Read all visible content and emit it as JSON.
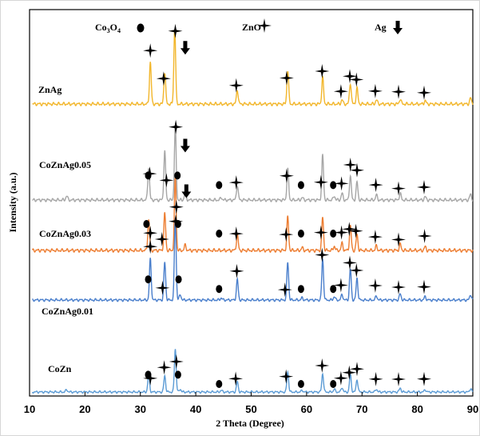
{
  "chart_data": {
    "type": "line",
    "xlabel": "2 Theta (Degree)",
    "ylabel": "Intensity (a.u.)",
    "xlim": [
      10,
      90
    ],
    "x_ticks": [
      "10",
      "20",
      "30",
      "40",
      "50",
      "60",
      "70",
      "80",
      "90"
    ],
    "legend": [
      {
        "label": "Co3O4",
        "label_main": "Co",
        "label_sub1": "3",
        "label_mid": "O",
        "label_sub2": "4",
        "marker": "circle"
      },
      {
        "label": "ZnO",
        "marker": "star"
      },
      {
        "label": "Ag",
        "marker": "down-arrow"
      }
    ],
    "series": [
      {
        "name": "ZnAg",
        "color": "#f2b62b",
        "peaks": [
          [
            31.8,
            0.5
          ],
          [
            34.4,
            0.38
          ],
          [
            36.2,
            0.9
          ],
          [
            47.5,
            0.17
          ],
          [
            56.6,
            0.4
          ],
          [
            62.9,
            0.32
          ],
          [
            66.4,
            0.05
          ],
          [
            67.9,
            0.25
          ],
          [
            69.1,
            0.19
          ],
          [
            72.6,
            0.05
          ],
          [
            76.9,
            0.06
          ],
          [
            81.4,
            0.04
          ],
          [
            89.6,
            0.07
          ]
        ],
        "star_markers": [
          31.8,
          34.2,
          36.3,
          47.3,
          56.4,
          62.8,
          66.2,
          67.8,
          69.0,
          72.4,
          76.6,
          81.2
        ],
        "circle_markers": [],
        "arrow_markers": [
          38.1
        ]
      },
      {
        "name": "CoZnAg0.05",
        "color": "#a6a6a6",
        "peaks": [
          [
            16.7,
            0.05
          ],
          [
            31.5,
            0.4
          ],
          [
            34.4,
            0.6
          ],
          [
            36.3,
            0.9
          ],
          [
            38.1,
            0.1
          ],
          [
            44.6,
            0.03
          ],
          [
            47.5,
            0.18
          ],
          [
            56.6,
            0.38
          ],
          [
            59.2,
            0.03
          ],
          [
            62.9,
            0.55
          ],
          [
            65.0,
            0.05
          ],
          [
            66.4,
            0.08
          ],
          [
            67.9,
            0.3
          ],
          [
            69.1,
            0.22
          ],
          [
            72.6,
            0.06
          ],
          [
            76.9,
            0.08
          ],
          [
            81.4,
            0.04
          ],
          [
            89.6,
            0.07
          ]
        ],
        "star_markers": [
          31.7,
          34.7,
          36.4,
          47.3,
          56.4,
          62.6,
          66.3,
          67.9,
          69.1,
          72.5,
          76.6,
          81.2
        ],
        "circle_markers": [
          31.4,
          36.7,
          44.2,
          59.0,
          64.8
        ],
        "arrow_markers": [
          38.1
        ]
      },
      {
        "name": "CoZnAg0.03",
        "color": "#ed7d31",
        "peaks": [
          [
            31.5,
            0.35
          ],
          [
            34.4,
            0.42
          ],
          [
            36.3,
            0.82
          ],
          [
            38.1,
            0.06
          ],
          [
            47.5,
            0.18
          ],
          [
            56.6,
            0.38
          ],
          [
            59.2,
            0.03
          ],
          [
            62.9,
            0.38
          ],
          [
            65.0,
            0.05
          ],
          [
            66.4,
            0.08
          ],
          [
            67.9,
            0.28
          ],
          [
            69.1,
            0.18
          ],
          [
            72.6,
            0.05
          ],
          [
            76.9,
            0.07
          ],
          [
            81.4,
            0.04
          ]
        ],
        "star_markers": [
          31.8,
          33.9,
          36.5,
          47.3,
          56.3,
          62.6,
          66.3,
          67.7,
          68.9,
          72.4,
          76.6,
          81.3
        ],
        "circle_markers": [
          31.1,
          36.8,
          44.2,
          59.0,
          64.8
        ],
        "arrow_markers": [
          38.3
        ]
      },
      {
        "name": "CoZnAg0.01",
        "color": "#4a7fcc",
        "peaks": [
          [
            31.8,
            0.6
          ],
          [
            34.4,
            0.55
          ],
          [
            36.3,
            1.2
          ],
          [
            37.2,
            0.08
          ],
          [
            44.6,
            0.03
          ],
          [
            47.5,
            0.3
          ],
          [
            56.6,
            0.55
          ],
          [
            59.2,
            0.03
          ],
          [
            62.9,
            0.6
          ],
          [
            65.0,
            0.05
          ],
          [
            66.4,
            0.08
          ],
          [
            67.9,
            0.45
          ],
          [
            69.1,
            0.32
          ],
          [
            72.6,
            0.06
          ],
          [
            76.9,
            0.09
          ],
          [
            81.4,
            0.05
          ],
          [
            89.6,
            0.08
          ]
        ],
        "star_markers": [
          31.8,
          34.0,
          36.4,
          47.4,
          56.1,
          62.8,
          66.2,
          67.8,
          69.0,
          72.4,
          76.6,
          81.2
        ],
        "circle_markers": [
          31.4,
          36.9,
          44.2,
          59.0,
          64.8
        ],
        "arrow_markers": []
      },
      {
        "name": "CoZn",
        "color": "#5b9bd5",
        "peaks": [
          [
            16.7,
            0.04
          ],
          [
            31.5,
            0.3
          ],
          [
            34.4,
            0.28
          ],
          [
            36.3,
            0.75
          ],
          [
            37.2,
            0.05
          ],
          [
            44.6,
            0.03
          ],
          [
            47.5,
            0.18
          ],
          [
            56.6,
            0.35
          ],
          [
            59.2,
            0.03
          ],
          [
            62.9,
            0.32
          ],
          [
            65.0,
            0.05
          ],
          [
            66.4,
            0.08
          ],
          [
            67.9,
            0.3
          ],
          [
            69.1,
            0.22
          ],
          [
            72.6,
            0.05
          ],
          [
            76.9,
            0.07
          ],
          [
            81.4,
            0.04
          ],
          [
            89.6,
            0.06
          ]
        ],
        "star_markers": [
          31.8,
          34.3,
          36.5,
          47.2,
          56.3,
          62.8,
          66.2,
          67.7,
          69.1,
          72.5,
          76.6,
          81.2
        ],
        "circle_markers": [
          31.4,
          36.8,
          44.2,
          59.0,
          64.8
        ],
        "arrow_markers": []
      }
    ]
  }
}
